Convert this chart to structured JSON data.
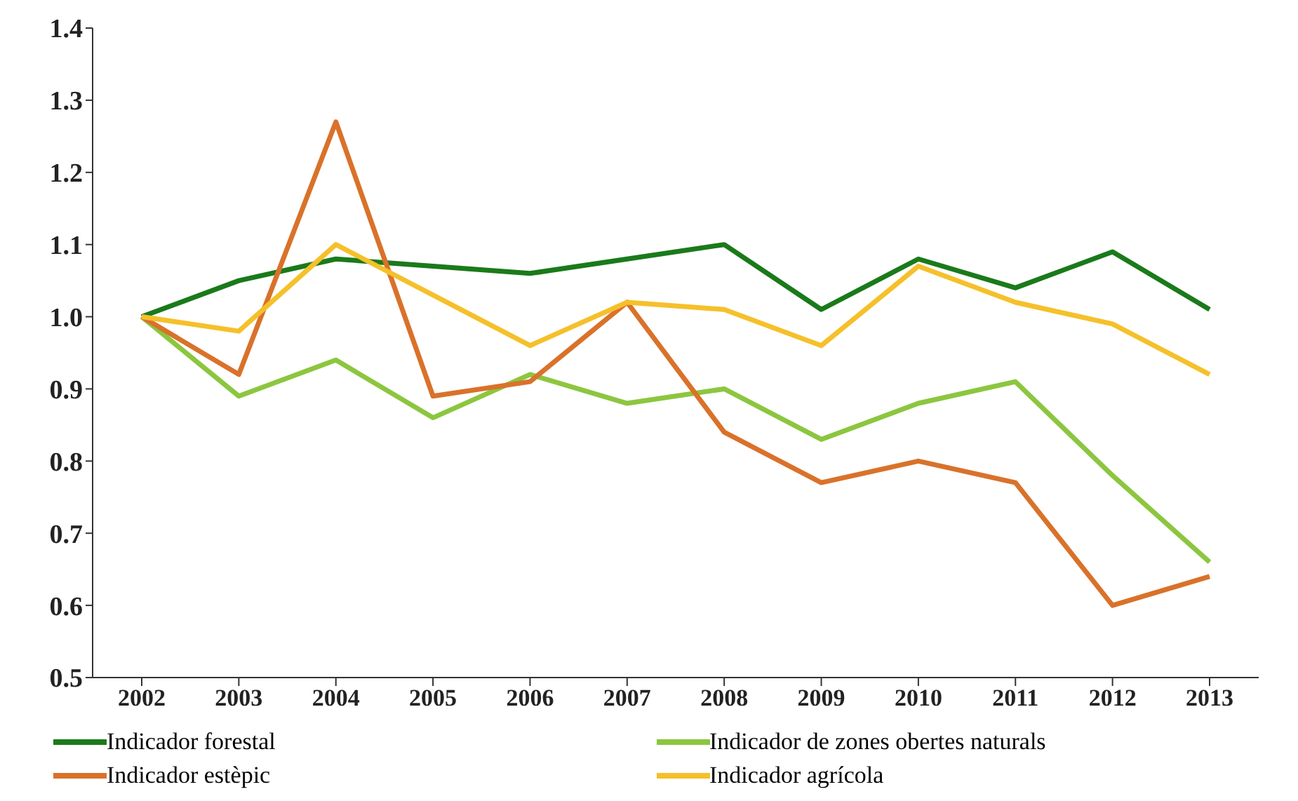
{
  "chart_data": {
    "type": "line",
    "categories": [
      "2002",
      "2003",
      "2004",
      "2005",
      "2006",
      "2007",
      "2008",
      "2009",
      "2010",
      "2011",
      "2012",
      "2013"
    ],
    "series": [
      {
        "name": "Indicador forestal",
        "color": "#1a7a1a",
        "values": [
          1.0,
          1.05,
          1.08,
          1.07,
          1.06,
          1.08,
          1.1,
          1.01,
          1.08,
          1.04,
          1.09,
          1.01
        ]
      },
      {
        "name": "Indicador de zones obertes naturals",
        "color": "#8cc63f",
        "values": [
          1.0,
          0.89,
          0.94,
          0.86,
          0.92,
          0.88,
          0.9,
          0.83,
          0.88,
          0.91,
          0.78,
          0.66
        ]
      },
      {
        "name": "Indicador estèpic",
        "color": "#d9722a",
        "values": [
          1.0,
          0.92,
          1.27,
          0.89,
          0.91,
          1.02,
          0.84,
          0.77,
          0.8,
          0.77,
          0.6,
          0.64
        ]
      },
      {
        "name": "Indicador agrícola",
        "color": "#f5c02a",
        "values": [
          1.0,
          0.98,
          1.1,
          1.03,
          0.96,
          1.02,
          1.01,
          0.96,
          1.07,
          1.02,
          0.99,
          0.92
        ]
      }
    ],
    "ylim": [
      0.5,
      1.4
    ],
    "yticks": [
      {
        "value": 0.5,
        "label": "0.5"
      },
      {
        "value": 0.6,
        "label": "0.6"
      },
      {
        "value": 0.7,
        "label": "0.7"
      },
      {
        "value": 0.8,
        "label": "0.8"
      },
      {
        "value": 0.9,
        "label": "0.9"
      },
      {
        "value": 1.0,
        "label": "1.0"
      },
      {
        "value": 1.1,
        "label": "1.1"
      },
      {
        "value": 1.2,
        "label": "1.2"
      },
      {
        "value": 1.3,
        "label": "1.3"
      },
      {
        "value": 1.4,
        "label": "1.4"
      }
    ],
    "grid": false,
    "legend": "bottom",
    "marker": "none",
    "line_style": "solid"
  }
}
